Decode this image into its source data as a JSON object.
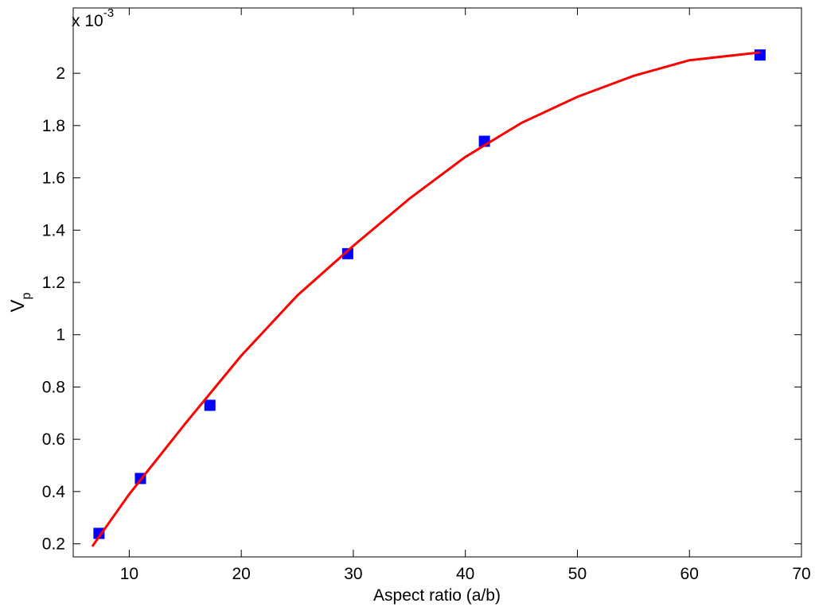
{
  "chart_data": {
    "type": "scatter",
    "xlabel": "Aspect ratio (a/b)",
    "ylabel": "V",
    "ylabel_sub": "p",
    "exponent_base": "x 10",
    "exponent_power": "-3",
    "xlim": [
      5,
      70
    ],
    "xticks": [
      10,
      20,
      30,
      40,
      50,
      60,
      70
    ],
    "ylim": [
      0.15,
      2.25
    ],
    "yticks": [
      0.2,
      0.4,
      0.6,
      0.8,
      1,
      1.2,
      1.4,
      1.6,
      1.8,
      2
    ],
    "series": [
      {
        "type": "scatter",
        "color": "#0000ff",
        "x": [
          7.3,
          11,
          17.2,
          29.5,
          41.7,
          66.3
        ],
        "values": [
          0.24,
          0.45,
          0.73,
          1.31,
          1.74,
          2.07
        ]
      },
      {
        "type": "line",
        "color": "#ff0000",
        "x": [
          6.7,
          10,
          15,
          20,
          25,
          30,
          35,
          40,
          45,
          50,
          55,
          60,
          66.3
        ],
        "values": [
          0.19,
          0.39,
          0.66,
          0.92,
          1.15,
          1.34,
          1.52,
          1.68,
          1.81,
          1.91,
          1.99,
          2.05,
          2.08
        ]
      }
    ]
  }
}
